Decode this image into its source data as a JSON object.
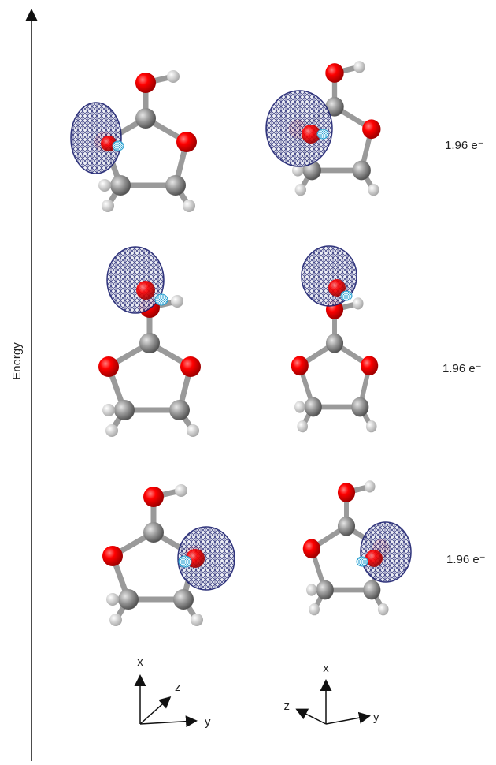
{
  "axis_label": "Energy",
  "occupancies": [
    "1.96 e⁻",
    "1.96 e⁻",
    "1.96 e⁻"
  ],
  "frames": [
    {
      "axes": [
        "x",
        "z",
        "y"
      ]
    },
    {
      "axes": [
        "x",
        "z",
        "y"
      ]
    }
  ]
}
